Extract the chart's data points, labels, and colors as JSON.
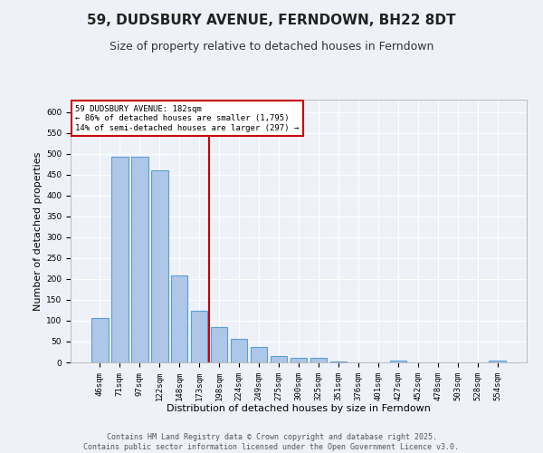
{
  "title": "59, DUDSBURY AVENUE, FERNDOWN, BH22 8DT",
  "subtitle": "Size of property relative to detached houses in Ferndown",
  "xlabel": "Distribution of detached houses by size in Ferndown",
  "ylabel": "Number of detached properties",
  "footer_line1": "Contains HM Land Registry data © Crown copyright and database right 2025.",
  "footer_line2": "Contains public sector information licensed under the Open Government Licence v3.0.",
  "categories": [
    "46sqm",
    "71sqm",
    "97sqm",
    "122sqm",
    "148sqm",
    "173sqm",
    "198sqm",
    "224sqm",
    "249sqm",
    "275sqm",
    "300sqm",
    "325sqm",
    "351sqm",
    "376sqm",
    "401sqm",
    "427sqm",
    "452sqm",
    "478sqm",
    "503sqm",
    "528sqm",
    "554sqm"
  ],
  "values": [
    106,
    493,
    493,
    460,
    208,
    124,
    84,
    57,
    38,
    15,
    10,
    11,
    2,
    0,
    0,
    5,
    1,
    0,
    0,
    0,
    5
  ],
  "bar_color": "#aec6e8",
  "bar_edge_color": "#5a9fd4",
  "vline_x_index": 5.5,
  "vline_color": "#cc0000",
  "annotation_text": "59 DUDSBURY AVENUE: 182sqm\n← 86% of detached houses are smaller (1,795)\n14% of semi-detached houses are larger (297) →",
  "annotation_box_color": "#ffffff",
  "annotation_box_edge_color": "#cc0000",
  "ylim": [
    0,
    630
  ],
  "yticks": [
    0,
    50,
    100,
    150,
    200,
    250,
    300,
    350,
    400,
    450,
    500,
    550,
    600
  ],
  "background_color": "#eef2f8",
  "plot_bg_color": "#eef2f8",
  "grid_color": "#ffffff",
  "title_fontsize": 11,
  "subtitle_fontsize": 9,
  "axis_label_fontsize": 8,
  "tick_fontsize": 6.5,
  "footer_fontsize": 6
}
